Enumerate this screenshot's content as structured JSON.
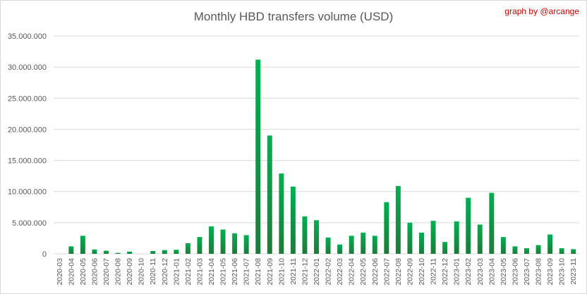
{
  "chart_data": {
    "type": "bar",
    "title": "Monthly HBD transfers volume (USD)",
    "credit": "graph by @arcange",
    "xlabel": "",
    "ylabel": "",
    "ylim": [
      0,
      35000000
    ],
    "yticks": [
      "0",
      "5.000.000",
      "10.000.000",
      "15.000.000",
      "20.000.000",
      "25.000.000",
      "30.000.000",
      "35.000.000"
    ],
    "grid": true,
    "bar_color_top": "#00b050",
    "bar_color_bottom": "#1e7a3a",
    "categories": [
      "2020-03",
      "2020-04",
      "2020-05",
      "2020-06",
      "2020-07",
      "2020-08",
      "2020-09",
      "2020-10",
      "2020-11",
      "2020-12",
      "2021-01",
      "2021-02",
      "2021-03",
      "2021-04",
      "2021-05",
      "2021-06",
      "2021-07",
      "2021-08",
      "2021-09",
      "2021-10",
      "2021-11",
      "2021-12",
      "2022-01",
      "2022-02",
      "2022-03",
      "2022-04",
      "2022-05",
      "2022-06",
      "2022-07",
      "2022-08",
      "2022-09",
      "2022-10",
      "2022-11",
      "2022-12",
      "2023-01",
      "2023-02",
      "2023-03",
      "2023-04",
      "2023-05",
      "2023-06",
      "2023-07",
      "2023-08",
      "2023-09",
      "2023-10",
      "2023-11"
    ],
    "values": [
      0,
      1200000,
      2900000,
      700000,
      500000,
      150000,
      350000,
      0,
      450000,
      600000,
      650000,
      1700000,
      2700000,
      4400000,
      3900000,
      3300000,
      3000000,
      31200000,
      19000000,
      12900000,
      10800000,
      6000000,
      5400000,
      2600000,
      1500000,
      2900000,
      3400000,
      2900000,
      8300000,
      10900000,
      5000000,
      3400000,
      5300000,
      1900000,
      5200000,
      9000000,
      4700000,
      9800000,
      2700000,
      1200000,
      900000,
      1400000,
      3100000,
      900000,
      750000
    ]
  }
}
